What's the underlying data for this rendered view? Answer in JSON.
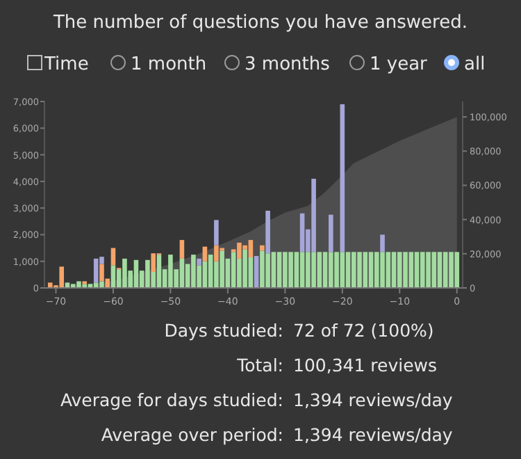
{
  "chart_data": {
    "type": "bar",
    "title": "The number of questions you have answered.",
    "stacked": true,
    "x": [
      -71,
      -70,
      -69,
      -68,
      -67,
      -66,
      -65,
      -64,
      -63,
      -62,
      -61,
      -60,
      -59,
      -58,
      -57,
      -56,
      -55,
      -54,
      -53,
      -52,
      -51,
      -50,
      -49,
      -48,
      -47,
      -46,
      -45,
      -44,
      -43,
      -42,
      -41,
      -40,
      -39,
      -38,
      -37,
      -36,
      -35,
      -34,
      -33,
      -32,
      -31,
      -30,
      -29,
      -28,
      -27,
      -26,
      -25,
      -24,
      -23,
      -22,
      -21,
      -20,
      -19,
      -18,
      -17,
      -16,
      -15,
      -14,
      -13,
      -12,
      -11,
      -10,
      -9,
      -8,
      -7,
      -6,
      -5,
      -4,
      -3,
      -2,
      -1,
      0
    ],
    "series": [
      {
        "type": "area",
        "axis": "y2",
        "color": "#555555",
        "x": [
          -71,
          -65,
          -60,
          -55,
          -50,
          -45,
          -40,
          -36,
          -33,
          -30,
          -26,
          -23,
          -20,
          -18,
          -10,
          -5,
          0
        ],
        "values": [
          0,
          2000,
          4000,
          9000,
          14000,
          20000,
          27000,
          33000,
          39000,
          44000,
          48000,
          56000,
          66000,
          73000,
          86000,
          93000,
          100000
        ]
      },
      {
        "color": "#a3dca0",
        "values": [
          0,
          0,
          0,
          200,
          150,
          250,
          150,
          150,
          200,
          250,
          0,
          850,
          700,
          1100,
          650,
          1050,
          650,
          1050,
          600,
          1250,
          700,
          1250,
          700,
          1100,
          900,
          1250,
          850,
          1000,
          1250,
          1000,
          1400,
          1100,
          1350,
          1100,
          1450,
          1150,
          0,
          1400,
          1300,
          1350,
          1350,
          1350,
          1350,
          1350,
          1350,
          1350,
          1350,
          1350,
          1350,
          1350,
          1350,
          1350,
          1350,
          1350,
          1350,
          1350,
          1350,
          1350,
          1350,
          1350,
          1350,
          1350,
          1350,
          1350,
          1350,
          1350,
          1350,
          1350,
          1350,
          1350,
          1350,
          1350
        ]
      },
      {
        "color": "#f5a46a",
        "values": [
          200,
          100,
          800,
          0,
          0,
          0,
          100,
          0,
          0,
          650,
          350,
          650,
          50,
          0,
          0,
          0,
          0,
          0,
          700,
          50,
          0,
          0,
          0,
          700,
          0,
          0,
          0,
          550,
          0,
          600,
          100,
          0,
          100,
          600,
          150,
          650,
          0,
          200,
          0,
          0,
          0,
          0,
          0,
          0,
          0,
          0,
          0,
          0,
          0,
          0,
          0,
          0,
          0,
          0,
          0,
          0,
          0,
          0,
          0,
          0,
          0,
          0,
          0,
          0,
          0,
          0,
          0,
          0,
          0,
          0,
          0,
          0
        ]
      },
      {
        "color": "#a6a6d8",
        "values": [
          0,
          0,
          0,
          0,
          0,
          0,
          0,
          0,
          900,
          270,
          0,
          0,
          0,
          0,
          0,
          0,
          0,
          0,
          0,
          0,
          0,
          0,
          0,
          0,
          0,
          0,
          250,
          0,
          0,
          950,
          0,
          0,
          0,
          0,
          0,
          0,
          1200,
          0,
          1600,
          0,
          0,
          0,
          0,
          0,
          1450,
          850,
          2750,
          0,
          0,
          1400,
          0,
          5550,
          0,
          0,
          0,
          0,
          0,
          0,
          650,
          0,
          0,
          0,
          0,
          0,
          0,
          0,
          0,
          0,
          0,
          0,
          0,
          0
        ]
      }
    ],
    "xlim": [
      -72,
      1
    ],
    "xticks": [
      -70,
      -60,
      -50,
      -40,
      -30,
      -20,
      -10,
      0
    ],
    "ylim": [
      0,
      7000
    ],
    "yticks": [
      {
        "value": 0,
        "label": "0"
      },
      {
        "value": 1000,
        "label": "1,000"
      },
      {
        "value": 2000,
        "label": "2,000"
      },
      {
        "value": 3000,
        "label": "3,000"
      },
      {
        "value": 4000,
        "label": "4,000"
      },
      {
        "value": 5000,
        "label": "5,000"
      },
      {
        "value": 6000,
        "label": "6,000"
      },
      {
        "value": 7000,
        "label": "7,000"
      }
    ],
    "y2lim": [
      0,
      109000
    ],
    "y2ticks": [
      {
        "value": 0,
        "label": "0"
      },
      {
        "value": 20000,
        "label": "20,000"
      },
      {
        "value": 40000,
        "label": "40,000"
      },
      {
        "value": 60000,
        "label": "60,000"
      },
      {
        "value": 80000,
        "label": "80,000"
      },
      {
        "value": 100000,
        "label": "100,000"
      }
    ],
    "grid": false,
    "annotations": [
      "Time",
      "1 month",
      "3 months",
      "1 year",
      "all",
      "Days studied:",
      "72 of 72 (100%)",
      "Total:",
      "100,341 reviews",
      "Average for days studied:",
      "1,394 reviews/day",
      "Average over period:",
      "1,394 reviews/day"
    ]
  }
}
